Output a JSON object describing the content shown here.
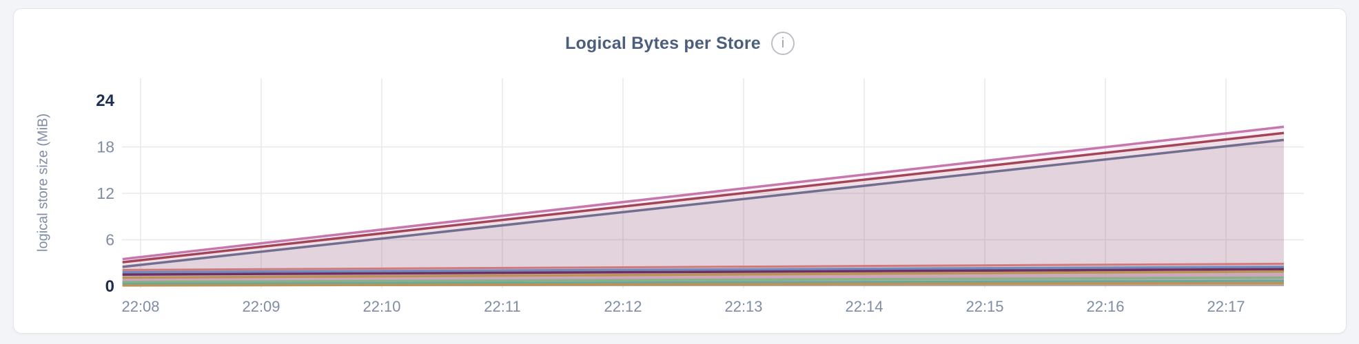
{
  "page": {
    "background": "#f3f4f8"
  },
  "card": {
    "background": "#ffffff",
    "border_color": "#e3e4e6",
    "header": {
      "title": "Logical Bytes per Store",
      "title_color": "#4c5e7d",
      "info_icon": {
        "name": "info-icon",
        "glyph": "i"
      }
    }
  },
  "chart_data": {
    "type": "area",
    "title": "Logical Bytes per Store",
    "ylabel": "logical store size (MiB)",
    "xlabel": "",
    "x_unit": "time of day (HH:MM), x values are minutes after 22:00",
    "y_unit": "MiB",
    "ylim": [
      0,
      24
    ],
    "xlim": [
      7.85,
      17.48
    ],
    "y_ticks": [
      0,
      6,
      12,
      18,
      24
    ],
    "x_ticks": [
      {
        "x": 8,
        "label": "22:08"
      },
      {
        "x": 9,
        "label": "22:09"
      },
      {
        "x": 10,
        "label": "22:10"
      },
      {
        "x": 11,
        "label": "22:11"
      },
      {
        "x": 12,
        "label": "22:12"
      },
      {
        "x": 13,
        "label": "22:13"
      },
      {
        "x": 14,
        "label": "22:14"
      },
      {
        "x": 15,
        "label": "22:15"
      },
      {
        "x": 16,
        "label": "22:16"
      },
      {
        "x": 17,
        "label": "22:17"
      }
    ],
    "grid": true,
    "legend": "none",
    "fill_opacity": 0.1,
    "grid_color": "#e8e8ea",
    "tick_color": "#7e8da4",
    "tick_color_emphasis": "#1f2f51",
    "series": [
      {
        "id": "s1-orchid",
        "color": "#c678ae",
        "width": 3.5,
        "points": [
          [
            7.85,
            3.5
          ],
          [
            17.48,
            20.6
          ]
        ]
      },
      {
        "id": "s2-rose",
        "color": "#a34458",
        "width": 3.5,
        "points": [
          [
            7.85,
            3.1
          ],
          [
            17.48,
            19.8
          ]
        ]
      },
      {
        "id": "s3-slate-purple",
        "color": "#716e90",
        "width": 3.5,
        "points": [
          [
            7.85,
            2.5
          ],
          [
            17.48,
            18.9
          ]
        ]
      },
      {
        "id": "s4-salmon",
        "color": "#d1797b",
        "width": 3.0,
        "points": [
          [
            7.85,
            2.1
          ],
          [
            17.48,
            2.9
          ]
        ]
      },
      {
        "id": "s5-steel-blue",
        "color": "#6e8cbe",
        "width": 3.5,
        "points": [
          [
            7.85,
            1.8
          ],
          [
            17.48,
            2.5
          ]
        ]
      },
      {
        "id": "s6-magenta",
        "color": "#702f63",
        "width": 3.5,
        "points": [
          [
            7.85,
            1.5
          ],
          [
            17.48,
            2.2
          ]
        ]
      },
      {
        "id": "s7-amber",
        "color": "#bd9355",
        "width": 3.5,
        "points": [
          [
            7.85,
            1.1
          ],
          [
            17.48,
            1.9
          ]
        ]
      },
      {
        "id": "s8-mauve",
        "color": "#d0a3bf",
        "width": 3.0,
        "points": [
          [
            7.85,
            0.8
          ],
          [
            17.48,
            1.4
          ]
        ]
      },
      {
        "id": "s9-green",
        "color": "#85b385",
        "width": 3.5,
        "points": [
          [
            7.85,
            0.55
          ],
          [
            17.48,
            1.1
          ]
        ]
      },
      {
        "id": "s10-teal",
        "color": "#66a79e",
        "width": 3.0,
        "points": [
          [
            7.85,
            0.3
          ],
          [
            17.48,
            0.7
          ]
        ]
      },
      {
        "id": "s11-gold",
        "color": "#bd9355",
        "width": 3.5,
        "points": [
          [
            7.85,
            0.1
          ],
          [
            17.48,
            0.4
          ]
        ]
      }
    ]
  }
}
